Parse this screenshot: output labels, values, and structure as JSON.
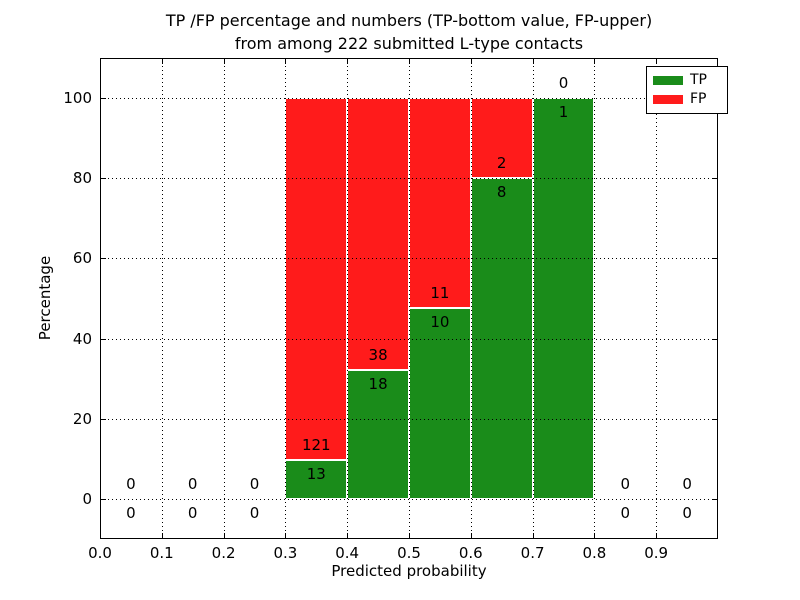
{
  "title": {
    "line1": "TP /FP percentage and numbers (TP-bottom value, FP-upper)",
    "line2": "from among 222 submitted L-type contacts"
  },
  "axes": {
    "xlabel": "Predicted probability",
    "ylabel": "Percentage",
    "xticks": [
      "0.0",
      "0.1",
      "0.2",
      "0.3",
      "0.4",
      "0.5",
      "0.6",
      "0.7",
      "0.8",
      "0.9"
    ],
    "yticks": [
      "0",
      "20",
      "40",
      "60",
      "80",
      "100"
    ],
    "xlim": [
      0.0,
      1.0
    ],
    "ylim": [
      -10,
      110
    ],
    "grid_style": "dotted"
  },
  "legend": {
    "position": "upper-right",
    "items": [
      {
        "label": "TP",
        "color": "#1a8c1a"
      },
      {
        "label": "FP",
        "color": "#ff1b1b"
      }
    ]
  },
  "chart_data": {
    "type": "bar",
    "stacked": true,
    "normalized_to": 100,
    "total_contacts": 222,
    "title": "TP /FP percentage and numbers (TP-bottom value, FP-upper) from among 222 submitted L-type contacts",
    "xlabel": "Predicted probability",
    "ylabel": "Percentage",
    "bins": [
      {
        "range": [
          0.0,
          0.1
        ],
        "tp": 0,
        "fp": 0,
        "tp_pct": null
      },
      {
        "range": [
          0.1,
          0.2
        ],
        "tp": 0,
        "fp": 0,
        "tp_pct": null
      },
      {
        "range": [
          0.2,
          0.3
        ],
        "tp": 0,
        "fp": 0,
        "tp_pct": null
      },
      {
        "range": [
          0.3,
          0.4
        ],
        "tp": 13,
        "fp": 121,
        "tp_pct": 9.7
      },
      {
        "range": [
          0.4,
          0.5
        ],
        "tp": 18,
        "fp": 38,
        "tp_pct": 32.1
      },
      {
        "range": [
          0.5,
          0.6
        ],
        "tp": 10,
        "fp": 11,
        "tp_pct": 47.6
      },
      {
        "range": [
          0.6,
          0.7
        ],
        "tp": 8,
        "fp": 2,
        "tp_pct": 80.0
      },
      {
        "range": [
          0.7,
          0.8
        ],
        "tp": 1,
        "fp": 0,
        "tp_pct": 100.0
      },
      {
        "range": [
          0.8,
          0.9
        ],
        "tp": 0,
        "fp": 0,
        "tp_pct": null
      },
      {
        "range": [
          0.9,
          1.0
        ],
        "tp": 0,
        "fp": 0,
        "tp_pct": null
      }
    ]
  },
  "colors": {
    "tp": "#1a8c1a",
    "fp": "#ff1b1b",
    "axis": "#000000",
    "background": "#ffffff"
  }
}
